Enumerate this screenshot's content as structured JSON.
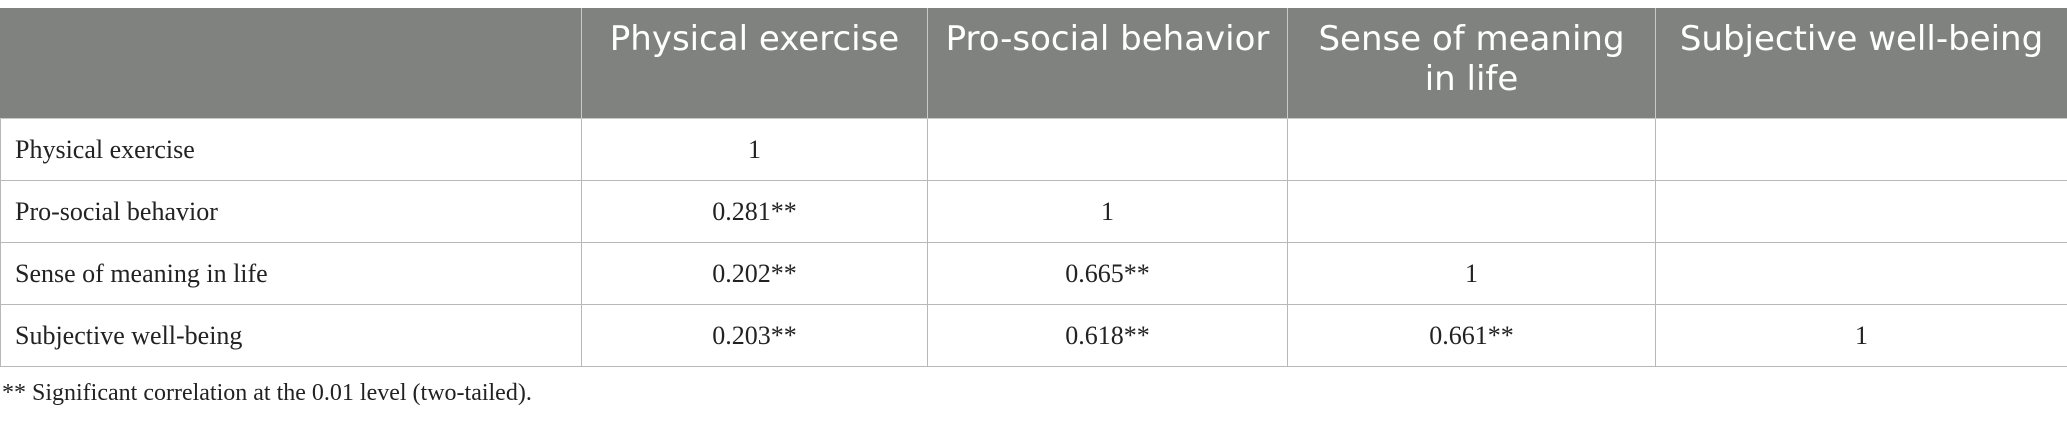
{
  "table": {
    "headers": [
      "",
      "Physical exercise",
      "Pro-social behavior",
      "Sense of meaning in life",
      "Subjective well-being"
    ],
    "rows": [
      {
        "label": "Physical exercise",
        "cells": [
          "1",
          "",
          "",
          ""
        ]
      },
      {
        "label": "Pro-social behavior",
        "cells": [
          "0.281**",
          "1",
          "",
          ""
        ]
      },
      {
        "label": "Sense of meaning in life",
        "cells": [
          "0.202**",
          "0.665**",
          "1",
          ""
        ]
      },
      {
        "label": "Subjective well-being",
        "cells": [
          "0.203**",
          "0.618**",
          "0.661**",
          "1"
        ]
      }
    ]
  },
  "footnote": "** Significant correlation at the 0.01 level (two-tailed)."
}
